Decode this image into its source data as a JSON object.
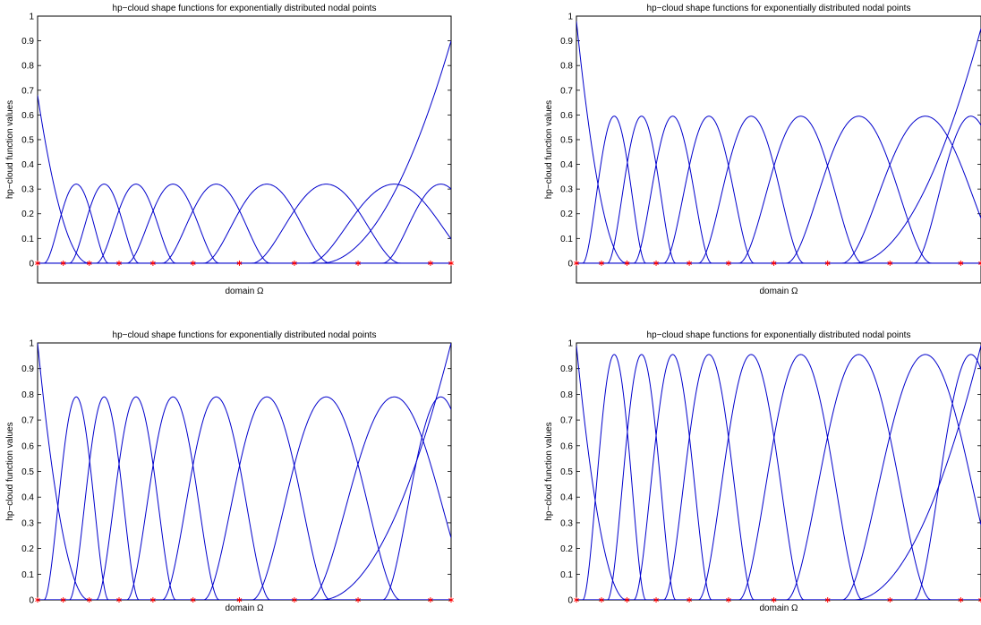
{
  "chart_data": [
    {
      "type": "line",
      "title": "hp−cloud shape functions for exponentially distributed nodal points",
      "xlabel": "domain Ω",
      "ylabel": "hp−cloud function values",
      "ylim": [
        -0.08,
        1.0
      ],
      "yticks": [
        "0",
        "0.1",
        "0.2",
        "0.3",
        "0.4",
        "0.5",
        "0.6",
        "0.7",
        "0.8",
        "0.9",
        "1"
      ],
      "xlim": [
        0,
        1
      ],
      "nodes": [
        0,
        0.062,
        0.125,
        0.197,
        0.279,
        0.376,
        0.488,
        0.621,
        0.775,
        0.95
      ],
      "peak_value": 0.32,
      "left_edge_value": 0.68,
      "right_edge_value": 0.9,
      "series_color": "#0000cc",
      "marker_color": "#ff0000",
      "marker": "asterisk",
      "grid": false
    },
    {
      "type": "line",
      "title": "hp−cloud shape functions for exponentially distributed nodal points",
      "xlabel": "domain Ω",
      "ylabel": "hp−cloud function values",
      "ylim": [
        -0.08,
        1.0
      ],
      "yticks": [
        "0",
        "0.1",
        "0.2",
        "0.3",
        "0.4",
        "0.5",
        "0.6",
        "0.7",
        "0.8",
        "0.9",
        "1"
      ],
      "xlim": [
        0,
        1
      ],
      "nodes": [
        0,
        0.062,
        0.125,
        0.197,
        0.279,
        0.376,
        0.488,
        0.621,
        0.775,
        0.95
      ],
      "peak_value": 0.595,
      "left_edge_value": 0.98,
      "right_edge_value": 0.95,
      "series_color": "#0000cc",
      "marker_color": "#ff0000",
      "marker": "asterisk",
      "grid": false
    },
    {
      "type": "line",
      "title": "hp−cloud shape functions for exponentially distributed nodal points",
      "xlabel": "domain Ω",
      "ylabel": "hp−cloud function values",
      "ylim": [
        0,
        1.0
      ],
      "yticks": [
        "0",
        "0.1",
        "0.2",
        "0.3",
        "0.4",
        "0.5",
        "0.6",
        "0.7",
        "0.8",
        "0.9",
        "1"
      ],
      "xlim": [
        0,
        1
      ],
      "nodes": [
        0,
        0.062,
        0.125,
        0.197,
        0.279,
        0.376,
        0.488,
        0.621,
        0.775,
        0.95
      ],
      "peak_value": 0.79,
      "left_edge_value": 1.0,
      "right_edge_value": 1.0,
      "series_color": "#0000cc",
      "marker_color": "#ff0000",
      "marker": "asterisk",
      "grid": false
    },
    {
      "type": "line",
      "title": "hp−cloud shape functions for exponentially distributed nodal points",
      "xlabel": "domain Ω",
      "ylabel": "hp−cloud function values",
      "ylim": [
        0,
        1.0
      ],
      "yticks": [
        "0",
        "0.1",
        "0.2",
        "0.3",
        "0.4",
        "0.5",
        "0.6",
        "0.7",
        "0.8",
        "0.9",
        "1"
      ],
      "xlim": [
        0,
        1
      ],
      "nodes": [
        0,
        0.062,
        0.125,
        0.197,
        0.279,
        0.376,
        0.488,
        0.621,
        0.775,
        0.95
      ],
      "peak_value": 0.955,
      "left_edge_value": 0.99,
      "right_edge_value": 0.99,
      "series_color": "#0000cc",
      "marker_color": "#ff0000",
      "marker": "asterisk",
      "grid": false
    }
  ]
}
